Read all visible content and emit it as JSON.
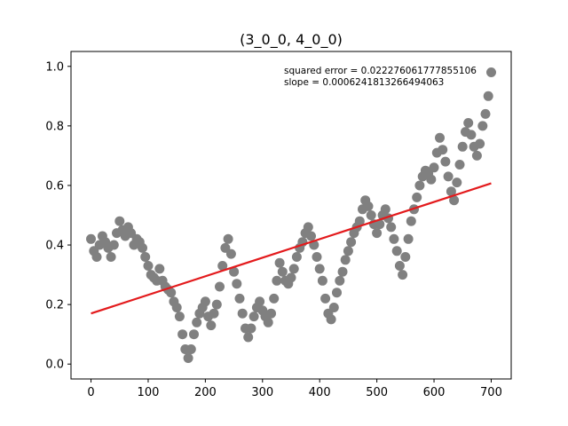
{
  "chart_data": {
    "type": "scatter",
    "title": "(3_0_0, 4_0_0)",
    "xlabel": "",
    "ylabel": "",
    "xlim": [
      -35,
      735
    ],
    "ylim": [
      -0.05,
      1.05
    ],
    "xticks": [
      0,
      100,
      200,
      300,
      400,
      500,
      600,
      700
    ],
    "yticks": [
      0.0,
      0.2,
      0.4,
      0.6,
      0.8,
      1.0
    ],
    "grid": false,
    "colors": {
      "points": "#808080",
      "fit_line": "#e31a1c",
      "axes": "#000000"
    },
    "annotations": [
      "squared error = 0.022276061777855106",
      "slope = 0.0006241813266494063"
    ],
    "fit_line": {
      "x": [
        0,
        700
      ],
      "y": [
        0.17,
        0.607
      ]
    },
    "series": [
      {
        "type": "scatter",
        "x": [
          0,
          5,
          10,
          15,
          20,
          25,
          30,
          35,
          40,
          45,
          50,
          55,
          60,
          65,
          70,
          75,
          80,
          85,
          90,
          95,
          100,
          105,
          110,
          115,
          120,
          125,
          130,
          135,
          140,
          145,
          150,
          155,
          160,
          165,
          170,
          175,
          180,
          185,
          190,
          195,
          200,
          205,
          210,
          215,
          220,
          225,
          230,
          235,
          240,
          245,
          250,
          255,
          260,
          265,
          270,
          275,
          280,
          285,
          290,
          295,
          300,
          305,
          310,
          315,
          320,
          325,
          330,
          335,
          340,
          345,
          350,
          355,
          360,
          365,
          370,
          375,
          380,
          385,
          390,
          395,
          400,
          405,
          410,
          415,
          420,
          425,
          430,
          435,
          440,
          445,
          450,
          455,
          460,
          465,
          470,
          475,
          480,
          485,
          490,
          495,
          500,
          505,
          510,
          515,
          520,
          525,
          530,
          535,
          540,
          545,
          550,
          555,
          560,
          565,
          570,
          575,
          580,
          585,
          590,
          595,
          600,
          605,
          610,
          615,
          620,
          625,
          630,
          635,
          640,
          645,
          650,
          655,
          660,
          665,
          670,
          675,
          680,
          685,
          690,
          695,
          700
        ],
        "y": [
          0.42,
          0.38,
          0.36,
          0.4,
          0.43,
          0.41,
          0.39,
          0.36,
          0.4,
          0.44,
          0.48,
          0.45,
          0.43,
          0.46,
          0.44,
          0.4,
          0.42,
          0.41,
          0.39,
          0.36,
          0.33,
          0.3,
          0.29,
          0.28,
          0.32,
          0.28,
          0.26,
          0.25,
          0.24,
          0.21,
          0.19,
          0.16,
          0.1,
          0.05,
          0.02,
          0.05,
          0.1,
          0.14,
          0.17,
          0.19,
          0.21,
          0.16,
          0.13,
          0.17,
          0.2,
          0.26,
          0.33,
          0.39,
          0.42,
          0.37,
          0.31,
          0.27,
          0.22,
          0.17,
          0.12,
          0.09,
          0.12,
          0.16,
          0.19,
          0.21,
          0.18,
          0.16,
          0.14,
          0.17,
          0.22,
          0.28,
          0.34,
          0.31,
          0.28,
          0.27,
          0.29,
          0.32,
          0.36,
          0.39,
          0.41,
          0.44,
          0.46,
          0.43,
          0.4,
          0.36,
          0.32,
          0.28,
          0.22,
          0.17,
          0.15,
          0.19,
          0.24,
          0.28,
          0.31,
          0.35,
          0.38,
          0.41,
          0.44,
          0.46,
          0.48,
          0.52,
          0.55,
          0.53,
          0.5,
          0.47,
          0.44,
          0.47,
          0.5,
          0.52,
          0.49,
          0.46,
          0.42,
          0.38,
          0.33,
          0.3,
          0.36,
          0.42,
          0.48,
          0.52,
          0.56,
          0.6,
          0.63,
          0.65,
          0.64,
          0.62,
          0.66,
          0.71,
          0.76,
          0.72,
          0.68,
          0.63,
          0.58,
          0.55,
          0.61,
          0.67,
          0.73,
          0.78,
          0.81,
          0.77,
          0.73,
          0.7,
          0.74,
          0.8,
          0.84,
          0.9,
          0.98
        ]
      }
    ]
  }
}
